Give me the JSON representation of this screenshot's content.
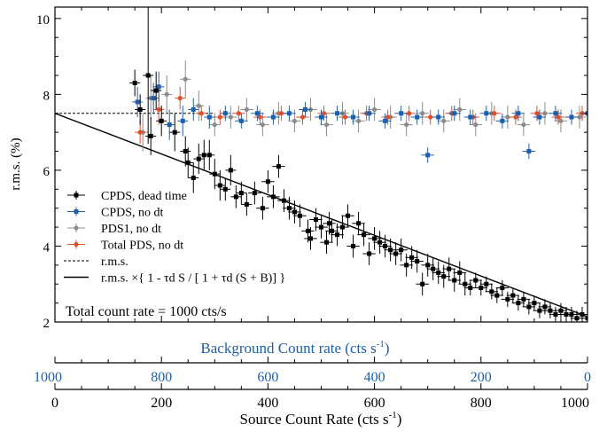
{
  "chart_data": {
    "type": "scatter",
    "ylabel": "r.m.s. (%)",
    "xlabel_bottom": "Source Count Rate (cts s",
    "xlabel_bottom_sup": "-1",
    "xlabel_bottom_end": ")",
    "xlabel_top": "Background Count rate (cts s",
    "xlabel_top_sup": "-1",
    "xlabel_top_end": ")",
    "xlim": [
      0,
      1000
    ],
    "ylim": [
      2,
      10.3
    ],
    "yticks": [
      2,
      4,
      6,
      8,
      10
    ],
    "xticks": [
      0,
      200,
      400,
      600,
      800,
      1000
    ],
    "top_ticks": [
      {
        "x": 0,
        "label": "1000"
      },
      {
        "x": 200,
        "label": "800"
      },
      {
        "x": 400,
        "label": "600"
      },
      {
        "x": 600,
        "label": "400"
      },
      {
        "x": 800,
        "label": "200"
      },
      {
        "x": 1000,
        "label": "0"
      }
    ],
    "annotation": "Total count rate = 1000 cts/s",
    "colors": {
      "cpds_dead": "#000000",
      "cpds_nodt": "#1f5fa8",
      "pds1": "#8c8c8c",
      "total_pds": "#e0502a",
      "top_axis_text": "#1f5fa8"
    },
    "legend": [
      {
        "label": "CPDS, dead time",
        "color": "#000000",
        "style": "marker"
      },
      {
        "label": "CPDS, no dt",
        "color": "#1f5fa8",
        "style": "marker"
      },
      {
        "label": "PDS1, no dt",
        "color": "#8c8c8c",
        "style": "marker"
      },
      {
        "label": "Total PDS, no dt",
        "color": "#e0502a",
        "style": "marker"
      },
      {
        "label": "r.m.s.",
        "color": "#000000",
        "style": "dashed"
      },
      {
        "label": "r.m.s. ×{ 1 - τd S / [ 1 + τd (S + B)] }",
        "color": "#000000",
        "style": "solid"
      }
    ],
    "reference_lines": [
      {
        "name": "r.m.s.",
        "style": "dashed",
        "points": [
          [
            0,
            7.5
          ],
          [
            300,
            7.5
          ]
        ]
      },
      {
        "name": "model",
        "style": "solid",
        "points": [
          [
            0,
            7.5
          ],
          [
            1000,
            2.14
          ]
        ]
      }
    ],
    "series": [
      {
        "name": "CPDS, dead time",
        "color": "#000000",
        "marker": "square",
        "points": [
          [
            150,
            8.3,
            10,
            0.35
          ],
          [
            160,
            7.6,
            10,
            0.4
          ],
          [
            175,
            8.5,
            10,
            1.8
          ],
          [
            180,
            6.9,
            10,
            0.5
          ],
          [
            190,
            8.1,
            10,
            0.5
          ],
          [
            200,
            7.3,
            10,
            0.4
          ],
          [
            225,
            7.0,
            10,
            0.5
          ],
          [
            245,
            6.5,
            10,
            0.4
          ],
          [
            250,
            6.2,
            10,
            0.4
          ],
          [
            260,
            5.8,
            10,
            0.4
          ],
          [
            270,
            6.3,
            10,
            0.4
          ],
          [
            280,
            6.4,
            10,
            0.4
          ],
          [
            290,
            6.4,
            10,
            0.4
          ],
          [
            300,
            5.9,
            10,
            0.4
          ],
          [
            310,
            5.6,
            10,
            0.4
          ],
          [
            320,
            5.5,
            10,
            0.3
          ],
          [
            330,
            6.0,
            10,
            0.4
          ],
          [
            340,
            5.3,
            10,
            0.3
          ],
          [
            350,
            5.4,
            10,
            0.3
          ],
          [
            360,
            5.1,
            10,
            0.3
          ],
          [
            375,
            5.4,
            12,
            0.3
          ],
          [
            390,
            5.0,
            12,
            0.3
          ],
          [
            400,
            5.7,
            12,
            0.3
          ],
          [
            410,
            5.3,
            12,
            0.3
          ],
          [
            420,
            6.1,
            12,
            0.3
          ],
          [
            430,
            5.2,
            12,
            0.3
          ],
          [
            440,
            5.0,
            12,
            0.3
          ],
          [
            450,
            4.9,
            12,
            0.3
          ],
          [
            460,
            4.8,
            12,
            0.3
          ],
          [
            475,
            4.4,
            12,
            0.3
          ],
          [
            480,
            4.2,
            12,
            0.3
          ],
          [
            490,
            4.7,
            12,
            0.3
          ],
          [
            500,
            4.5,
            12,
            0.3
          ],
          [
            510,
            4.1,
            12,
            0.3
          ],
          [
            515,
            4.6,
            12,
            0.3
          ],
          [
            520,
            4.4,
            12,
            0.3
          ],
          [
            530,
            4.3,
            12,
            0.3
          ],
          [
            540,
            4.5,
            12,
            0.3
          ],
          [
            550,
            4.8,
            12,
            0.3
          ],
          [
            560,
            4.0,
            12,
            0.3
          ],
          [
            570,
            4.6,
            12,
            0.3
          ],
          [
            580,
            4.3,
            12,
            0.3
          ],
          [
            590,
            3.8,
            12,
            0.3
          ],
          [
            600,
            4.2,
            12,
            0.3
          ],
          [
            610,
            4.1,
            12,
            0.3
          ],
          [
            620,
            4.0,
            12,
            0.3
          ],
          [
            630,
            3.9,
            12,
            0.3
          ],
          [
            640,
            3.8,
            12,
            0.3
          ],
          [
            650,
            3.9,
            12,
            0.3
          ],
          [
            660,
            3.5,
            12,
            0.3
          ],
          [
            670,
            3.7,
            12,
            0.3
          ],
          [
            680,
            3.6,
            12,
            0.3
          ],
          [
            690,
            3.0,
            12,
            0.3
          ],
          [
            700,
            3.5,
            12,
            0.3
          ],
          [
            710,
            3.4,
            12,
            0.3
          ],
          [
            720,
            3.3,
            12,
            0.3
          ],
          [
            730,
            3.2,
            12,
            0.3
          ],
          [
            740,
            3.4,
            12,
            0.3
          ],
          [
            750,
            3.1,
            12,
            0.3
          ],
          [
            760,
            3.3,
            12,
            0.3
          ],
          [
            770,
            3.0,
            12,
            0.3
          ],
          [
            780,
            2.9,
            12,
            0.2
          ],
          [
            790,
            3.1,
            12,
            0.2
          ],
          [
            800,
            2.9,
            12,
            0.2
          ],
          [
            810,
            3.0,
            12,
            0.2
          ],
          [
            820,
            2.8,
            12,
            0.2
          ],
          [
            830,
            2.7,
            12,
            0.2
          ],
          [
            840,
            2.9,
            12,
            0.2
          ],
          [
            850,
            2.6,
            12,
            0.2
          ],
          [
            860,
            2.7,
            12,
            0.2
          ],
          [
            870,
            2.5,
            12,
            0.2
          ],
          [
            880,
            2.6,
            12,
            0.2
          ],
          [
            890,
            2.4,
            12,
            0.2
          ],
          [
            900,
            2.5,
            12,
            0.2
          ],
          [
            910,
            2.3,
            12,
            0.2
          ],
          [
            920,
            2.4,
            12,
            0.2
          ],
          [
            930,
            2.3,
            12,
            0.2
          ],
          [
            940,
            2.2,
            12,
            0.2
          ],
          [
            950,
            2.3,
            12,
            0.2
          ],
          [
            960,
            2.2,
            12,
            0.2
          ],
          [
            970,
            2.2,
            12,
            0.2
          ],
          [
            980,
            2.1,
            12,
            0.2
          ],
          [
            990,
            2.2,
            12,
            0.2
          ],
          [
            1000,
            2.1,
            12,
            0.2
          ]
        ]
      },
      {
        "name": "CPDS, no dt",
        "color": "#1f5fa8",
        "marker": "square",
        "points": [
          [
            155,
            7.8,
            10,
            0.4
          ],
          [
            185,
            7.9,
            10,
            0.4
          ],
          [
            195,
            8.2,
            10,
            0.4
          ],
          [
            215,
            7.2,
            10,
            0.4
          ],
          [
            240,
            7.3,
            10,
            0.4
          ],
          [
            260,
            7.6,
            10,
            0.3
          ],
          [
            290,
            7.4,
            10,
            0.3
          ],
          [
            320,
            7.5,
            10,
            0.2
          ],
          [
            350,
            7.3,
            12,
            0.2
          ],
          [
            380,
            7.5,
            12,
            0.2
          ],
          [
            410,
            7.4,
            12,
            0.2
          ],
          [
            440,
            7.5,
            12,
            0.2
          ],
          [
            470,
            7.6,
            12,
            0.2
          ],
          [
            500,
            7.4,
            12,
            0.2
          ],
          [
            530,
            7.5,
            12,
            0.2
          ],
          [
            560,
            7.4,
            12,
            0.2
          ],
          [
            590,
            7.5,
            12,
            0.2
          ],
          [
            620,
            7.3,
            12,
            0.2
          ],
          [
            650,
            7.5,
            12,
            0.2
          ],
          [
            680,
            7.4,
            12,
            0.2
          ],
          [
            700,
            6.4,
            12,
            0.2
          ],
          [
            720,
            7.4,
            12,
            0.2
          ],
          [
            750,
            7.5,
            12,
            0.2
          ],
          [
            780,
            7.4,
            12,
            0.2
          ],
          [
            810,
            7.5,
            12,
            0.2
          ],
          [
            840,
            7.3,
            12,
            0.2
          ],
          [
            870,
            7.5,
            12,
            0.2
          ],
          [
            890,
            6.5,
            12,
            0.2
          ],
          [
            910,
            7.4,
            12,
            0.2
          ],
          [
            940,
            7.5,
            12,
            0.2
          ],
          [
            970,
            7.4,
            12,
            0.2
          ],
          [
            1000,
            7.5,
            12,
            0.2
          ]
        ]
      },
      {
        "name": "PDS1, no dt",
        "color": "#8c8c8c",
        "marker": "circle",
        "points": [
          [
            165,
            7.0,
            10,
            0.5
          ],
          [
            180,
            7.9,
            10,
            0.6
          ],
          [
            210,
            8.0,
            10,
            0.5
          ],
          [
            245,
            8.4,
            10,
            0.5
          ],
          [
            270,
            7.7,
            10,
            0.4
          ],
          [
            300,
            7.2,
            10,
            0.3
          ],
          [
            330,
            7.4,
            12,
            0.3
          ],
          [
            360,
            7.6,
            12,
            0.3
          ],
          [
            390,
            7.2,
            12,
            0.3
          ],
          [
            420,
            7.5,
            12,
            0.3
          ],
          [
            450,
            7.3,
            12,
            0.3
          ],
          [
            480,
            7.6,
            12,
            0.3
          ],
          [
            510,
            7.2,
            12,
            0.3
          ],
          [
            540,
            7.5,
            12,
            0.3
          ],
          [
            570,
            7.3,
            12,
            0.3
          ],
          [
            600,
            7.6,
            12,
            0.3
          ],
          [
            630,
            7.4,
            12,
            0.3
          ],
          [
            660,
            7.2,
            12,
            0.3
          ],
          [
            690,
            7.5,
            12,
            0.3
          ],
          [
            730,
            7.3,
            12,
            0.3
          ],
          [
            760,
            7.6,
            12,
            0.3
          ],
          [
            790,
            7.2,
            12,
            0.3
          ],
          [
            820,
            7.5,
            12,
            0.3
          ],
          [
            850,
            7.4,
            12,
            0.3
          ],
          [
            880,
            7.2,
            12,
            0.3
          ],
          [
            920,
            7.5,
            12,
            0.3
          ],
          [
            950,
            7.3,
            12,
            0.3
          ],
          [
            985,
            7.4,
            12,
            0.3
          ]
        ]
      },
      {
        "name": "Total PDS, no dt",
        "color": "#e0502a",
        "marker": "circle",
        "points": [
          [
            160,
            7.0,
            10,
            0.3
          ],
          [
            195,
            7.6,
            10,
            0.4
          ],
          [
            235,
            7.9,
            10,
            0.3
          ],
          [
            275,
            7.5,
            10,
            0.2
          ],
          [
            310,
            7.4,
            12,
            0.2
          ],
          [
            345,
            7.5,
            12,
            0.2
          ],
          [
            385,
            7.4,
            12,
            0.2
          ],
          [
            425,
            7.5,
            12,
            0.2
          ],
          [
            465,
            7.4,
            12,
            0.2
          ],
          [
            505,
            7.5,
            12,
            0.2
          ],
          [
            545,
            7.4,
            12,
            0.2
          ],
          [
            585,
            7.5,
            12,
            0.2
          ],
          [
            625,
            7.4,
            12,
            0.2
          ],
          [
            665,
            7.5,
            12,
            0.2
          ],
          [
            705,
            7.4,
            12,
            0.2
          ],
          [
            745,
            7.5,
            12,
            0.2
          ],
          [
            785,
            7.4,
            12,
            0.2
          ],
          [
            825,
            7.5,
            12,
            0.2
          ],
          [
            865,
            7.4,
            12,
            0.2
          ],
          [
            905,
            7.5,
            12,
            0.2
          ],
          [
            945,
            7.4,
            12,
            0.2
          ],
          [
            990,
            7.5,
            12,
            0.2
          ]
        ]
      }
    ]
  }
}
